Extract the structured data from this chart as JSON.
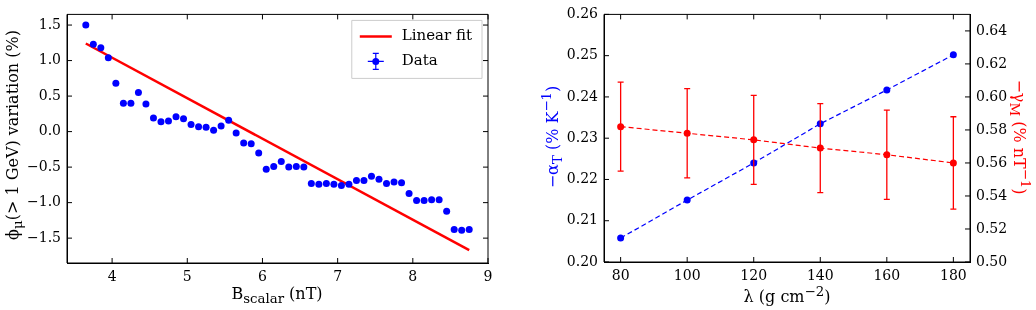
{
  "chart_data": [
    {
      "type": "scatter",
      "xlabel": "B$_{scalar}$ (nT)",
      "ylabel": "ϕ$_{μ}$(> 1 GeV) variation (%)",
      "legend": "top right",
      "xlim": [
        3.4,
        9
      ],
      "xticks": [
        4,
        5,
        6,
        7,
        8,
        9
      ],
      "ylim": [
        -1.85,
        1.65
      ],
      "yticks": [
        {
          "value": -1.5,
          "label": "−1.5"
        },
        {
          "value": -1,
          "label": "−1.0"
        },
        {
          "value": -0.5,
          "label": "−0.5"
        },
        {
          "value": 0,
          "label": "0.0"
        },
        {
          "value": 0.5,
          "label": "0.5"
        },
        {
          "value": 1,
          "label": "1.0"
        },
        {
          "value": 1.5,
          "label": "1.5"
        }
      ],
      "series": [
        {
          "name": "Linear fit",
          "type": "line",
          "marker": "none",
          "color": "#ff0000",
          "x": [
            3.65,
            8.75
          ],
          "values": [
            1.24,
            -1.67
          ]
        },
        {
          "name": "Data",
          "type": "scatter",
          "marker": "circle",
          "color": "#0000ff",
          "x": [
            3.65,
            3.75,
            3.85,
            3.95,
            4.05,
            4.15,
            4.25,
            4.35,
            4.45,
            4.55,
            4.65,
            4.75,
            4.85,
            4.95,
            5.05,
            5.15,
            5.25,
            5.35,
            5.45,
            5.55,
            5.65,
            5.75,
            5.85,
            5.95,
            6.05,
            6.15,
            6.25,
            6.35,
            6.45,
            6.55,
            6.65,
            6.75,
            6.85,
            6.95,
            7.05,
            7.15,
            7.25,
            7.35,
            7.45,
            7.55,
            7.65,
            7.75,
            7.85,
            7.95,
            8.05,
            8.15,
            8.25,
            8.35,
            8.45,
            8.55,
            8.65,
            8.75
          ],
          "values": [
            1.5,
            1.23,
            1.18,
            1.04,
            0.68,
            0.4,
            0.4,
            0.55,
            0.39,
            0.19,
            0.14,
            0.15,
            0.21,
            0.18,
            0.1,
            0.07,
            0.06,
            0.02,
            0.08,
            0.16,
            -0.02,
            -0.16,
            -0.17,
            -0.3,
            -0.53,
            -0.49,
            -0.42,
            -0.5,
            -0.49,
            -0.5,
            -0.73,
            -0.74,
            -0.73,
            -0.74,
            -0.76,
            -0.74,
            -0.69,
            -0.69,
            -0.63,
            -0.67,
            -0.73,
            -0.71,
            -0.72,
            -0.87,
            -0.97,
            -0.97,
            -0.96,
            -0.96,
            -1.12,
            -1.38,
            -1.39,
            -1.38
          ]
        }
      ]
    },
    {
      "type": "line",
      "xlabel": "λ (g cm$^{−2}$)",
      "ylabel": "−α$_{T}$ (% K$^{−1}$)",
      "y2label": "−γ$_{M}$ (% nT$^{−1}$)",
      "marker": "circle",
      "line_style": "dashed",
      "x": [
        80,
        100,
        120,
        140,
        160,
        180
      ],
      "xlim": [
        75,
        185
      ],
      "xticks": [
        80,
        100,
        120,
        140,
        160,
        180
      ],
      "ylim": [
        0.2,
        0.26
      ],
      "yticks": [
        {
          "value": 0.2,
          "label": "0.20"
        },
        0.21,
        0.22,
        0.23,
        0.24,
        0.25,
        {
          "value": 0.26,
          "label": "0.26"
        }
      ],
      "y2lim": [
        0.5,
        0.65
      ],
      "y2ticks": [
        {
          "value": 0.5,
          "label": "0.50"
        },
        0.52,
        0.54,
        0.56,
        0.58,
        {
          "value": 0.6,
          "label": "0.60"
        },
        0.62,
        0.64
      ],
      "series": [
        {
          "color": "#0000ff",
          "values": [
            0.2058,
            0.215,
            0.224,
            0.2335,
            0.2417,
            0.2502
          ]
        },
        {
          "color": "#ff0000",
          "axis": "y2",
          "values": [
            0.582,
            0.578,
            0.574,
            0.569,
            0.565,
            0.56
          ],
          "errors": [
            [
              0.555,
              0.609
            ],
            [
              0.551,
              0.605
            ],
            [
              0.547,
              0.601
            ],
            [
              0.542,
              0.596
            ],
            [
              0.538,
              0.592
            ],
            [
              0.532,
              0.588
            ]
          ]
        }
      ]
    }
  ]
}
